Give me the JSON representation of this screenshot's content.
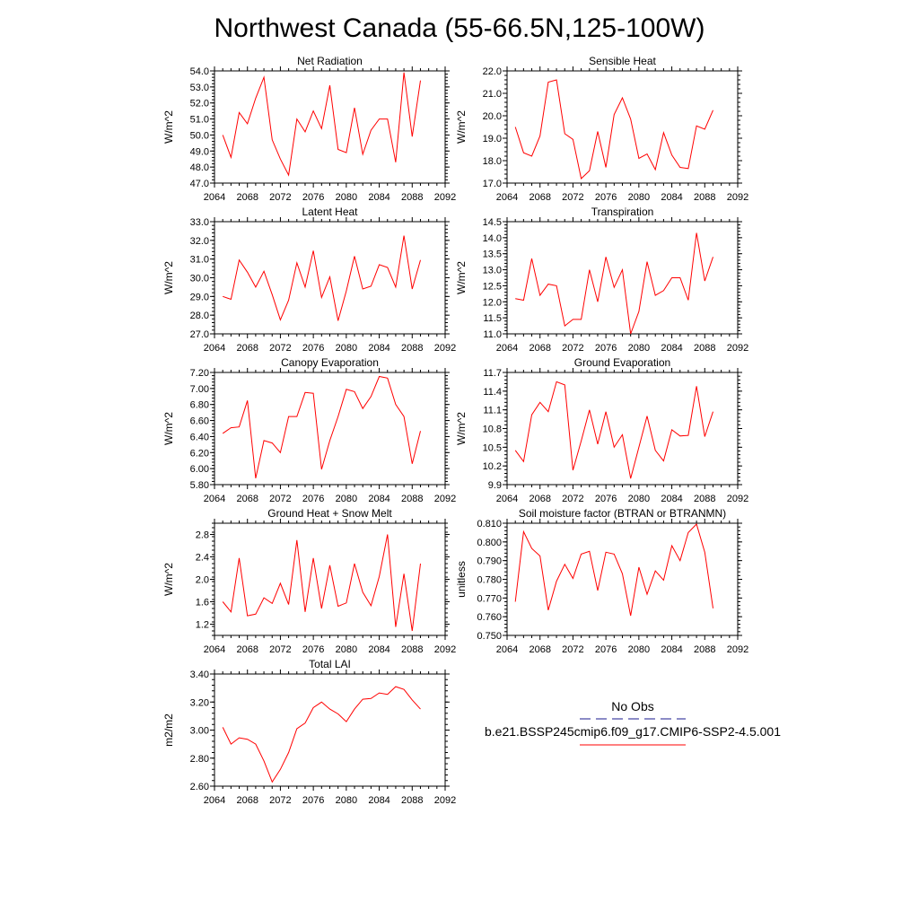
{
  "page_title": "Northwest Canada (55-66.5N,125-100W)",
  "colors": {
    "model_line": "#ff0000",
    "obs_line": "#1a1a8c"
  },
  "legend": {
    "obs_label": "No Obs",
    "model_label": "b.e21.BSSP245cmip6.f09_g17.CMIP6-SSP2-4.5.001"
  },
  "chart_data": [
    {
      "type": "line",
      "title": "Net Radiation",
      "ylabel": "W/m^2",
      "xlabel": "",
      "xlim": [
        2064,
        2092
      ],
      "ylim": [
        47.0,
        54.0
      ],
      "x_ticks": [
        "2064",
        "2068",
        "2072",
        "2076",
        "2080",
        "2084",
        "2088",
        "2092"
      ],
      "y_ticks": [
        "47.0",
        "48.0",
        "49.0",
        "50.0",
        "51.0",
        "52.0",
        "53.0",
        "54.0"
      ],
      "x": [
        2065,
        2066,
        2067,
        2068,
        2069,
        2070,
        2071,
        2072,
        2073,
        2074,
        2075,
        2076,
        2077,
        2078,
        2079,
        2080,
        2081,
        2082,
        2083,
        2084,
        2085,
        2086,
        2087,
        2088,
        2089
      ],
      "series": [
        {
          "values": [
            50.0,
            48.6,
            51.4,
            50.7,
            52.3,
            53.6,
            49.7,
            48.5,
            47.5,
            51.0,
            50.2,
            51.5,
            50.4,
            53.1,
            49.1,
            48.9,
            51.7,
            48.8,
            50.3,
            51.0,
            51.0,
            48.3,
            53.9,
            49.9,
            53.4
          ]
        }
      ]
    },
    {
      "type": "line",
      "title": "Sensible Heat",
      "ylabel": "W/m^2",
      "xlabel": "",
      "xlim": [
        2064,
        2092
      ],
      "ylim": [
        17.0,
        22.0
      ],
      "x_ticks": [
        "2064",
        "2068",
        "2072",
        "2076",
        "2080",
        "2084",
        "2088",
        "2092"
      ],
      "y_ticks": [
        "17.0",
        "18.0",
        "19.0",
        "20.0",
        "21.0",
        "22.0"
      ],
      "x": [
        2065,
        2066,
        2067,
        2068,
        2069,
        2070,
        2071,
        2072,
        2073,
        2074,
        2075,
        2076,
        2077,
        2078,
        2079,
        2080,
        2081,
        2082,
        2083,
        2084,
        2085,
        2086,
        2087,
        2088,
        2089
      ],
      "series": [
        {
          "values": [
            19.5,
            18.35,
            18.2,
            19.1,
            21.5,
            21.6,
            19.2,
            18.95,
            17.2,
            17.55,
            19.3,
            17.7,
            20.05,
            20.8,
            19.85,
            18.1,
            18.3,
            17.6,
            19.25,
            18.25,
            17.7,
            17.65,
            19.55,
            19.4,
            20.25
          ]
        }
      ]
    },
    {
      "type": "line",
      "title": "Latent Heat",
      "ylabel": "W/m^2",
      "xlabel": "",
      "xlim": [
        2064,
        2092
      ],
      "ylim": [
        27.0,
        33.0
      ],
      "x_ticks": [
        "2064",
        "2068",
        "2072",
        "2076",
        "2080",
        "2084",
        "2088",
        "2092"
      ],
      "y_ticks": [
        "27.0",
        "28.0",
        "29.0",
        "30.0",
        "31.0",
        "32.0",
        "33.0"
      ],
      "x": [
        2065,
        2066,
        2067,
        2068,
        2069,
        2070,
        2071,
        2072,
        2073,
        2074,
        2075,
        2076,
        2077,
        2078,
        2079,
        2080,
        2081,
        2082,
        2083,
        2084,
        2085,
        2086,
        2087,
        2088,
        2089
      ],
      "series": [
        {
          "values": [
            29.0,
            28.85,
            30.95,
            30.3,
            29.5,
            30.35,
            29.1,
            27.75,
            28.8,
            30.8,
            29.5,
            31.45,
            28.95,
            30.05,
            27.7,
            29.3,
            31.15,
            29.4,
            29.55,
            30.7,
            30.55,
            29.5,
            32.25,
            29.4,
            30.95
          ]
        }
      ]
    },
    {
      "type": "line",
      "title": "Transpiration",
      "ylabel": "W/m^2",
      "xlabel": "",
      "xlim": [
        2064,
        2092
      ],
      "ylim": [
        11.0,
        14.5
      ],
      "x_ticks": [
        "2064",
        "2068",
        "2072",
        "2076",
        "2080",
        "2084",
        "2088",
        "2092"
      ],
      "y_ticks": [
        "11.0",
        "11.5",
        "12.0",
        "12.5",
        "13.0",
        "13.5",
        "14.0",
        "14.5"
      ],
      "x": [
        2065,
        2066,
        2067,
        2068,
        2069,
        2070,
        2071,
        2072,
        2073,
        2074,
        2075,
        2076,
        2077,
        2078,
        2079,
        2080,
        2081,
        2082,
        2083,
        2084,
        2085,
        2086,
        2087,
        2088,
        2089
      ],
      "series": [
        {
          "values": [
            12.1,
            12.05,
            13.35,
            12.2,
            12.55,
            12.5,
            11.25,
            11.45,
            11.45,
            13.0,
            12.0,
            13.4,
            12.45,
            13.0,
            11.0,
            11.7,
            13.25,
            12.2,
            12.35,
            12.75,
            12.75,
            12.05,
            14.15,
            12.65,
            13.4
          ]
        }
      ]
    },
    {
      "type": "line",
      "title": "Canopy Evaporation",
      "ylabel": "W/m^2",
      "xlabel": "",
      "xlim": [
        2064,
        2092
      ],
      "ylim": [
        5.8,
        7.2
      ],
      "x_ticks": [
        "2064",
        "2068",
        "2072",
        "2076",
        "2080",
        "2084",
        "2088",
        "2092"
      ],
      "y_ticks": [
        "5.80",
        "6.00",
        "6.20",
        "6.40",
        "6.60",
        "6.80",
        "7.00",
        "7.20"
      ],
      "x": [
        2065,
        2066,
        2067,
        2068,
        2069,
        2070,
        2071,
        2072,
        2073,
        2074,
        2075,
        2076,
        2077,
        2078,
        2079,
        2080,
        2081,
        2082,
        2083,
        2084,
        2085,
        2086,
        2087,
        2088,
        2089
      ],
      "series": [
        {
          "values": [
            6.44,
            6.51,
            6.52,
            6.85,
            5.88,
            6.35,
            6.32,
            6.2,
            6.65,
            6.65,
            6.95,
            6.94,
            5.99,
            6.35,
            6.65,
            6.99,
            6.96,
            6.75,
            6.9,
            7.15,
            7.13,
            6.8,
            6.65,
            6.06,
            6.47
          ]
        }
      ]
    },
    {
      "type": "line",
      "title": "Ground Evaporation",
      "ylabel": "W/m^2",
      "xlabel": "",
      "xlim": [
        2064,
        2092
      ],
      "ylim": [
        9.9,
        11.7
      ],
      "x_ticks": [
        "2064",
        "2068",
        "2072",
        "2076",
        "2080",
        "2084",
        "2088",
        "2092"
      ],
      "y_ticks": [
        "9.9",
        "10.2",
        "10.5",
        "10.8",
        "11.1",
        "11.4",
        "11.7"
      ],
      "x": [
        2065,
        2066,
        2067,
        2068,
        2069,
        2070,
        2071,
        2072,
        2073,
        2074,
        2075,
        2076,
        2077,
        2078,
        2079,
        2080,
        2081,
        2082,
        2083,
        2084,
        2085,
        2086,
        2087,
        2088,
        2089
      ],
      "series": [
        {
          "values": [
            10.45,
            10.27,
            11.02,
            11.22,
            11.07,
            11.55,
            11.5,
            10.13,
            10.6,
            11.1,
            10.55,
            11.07,
            10.5,
            10.7,
            10.0,
            10.5,
            11.0,
            10.45,
            10.28,
            10.78,
            10.68,
            10.69,
            11.48,
            10.67,
            11.07
          ]
        }
      ]
    },
    {
      "type": "line",
      "title": "Ground Heat + Snow Melt",
      "ylabel": "W/m^2",
      "xlabel": "",
      "xlim": [
        2064,
        2092
      ],
      "ylim": [
        1.0,
        3.0
      ],
      "x_ticks": [
        "2064",
        "2068",
        "2072",
        "2076",
        "2080",
        "2084",
        "2088",
        "2092"
      ],
      "y_ticks": [
        "1.2",
        "1.6",
        "2.0",
        "2.4",
        "2.8"
      ],
      "y_tick_values": [
        1.2,
        1.6,
        2.0,
        2.4,
        2.8
      ],
      "x": [
        2065,
        2066,
        2067,
        2068,
        2069,
        2070,
        2071,
        2072,
        2073,
        2074,
        2075,
        2076,
        2077,
        2078,
        2079,
        2080,
        2081,
        2082,
        2083,
        2084,
        2085,
        2086,
        2087,
        2088,
        2089
      ],
      "series": [
        {
          "values": [
            1.6,
            1.42,
            2.38,
            1.35,
            1.38,
            1.67,
            1.57,
            1.93,
            1.55,
            2.7,
            1.42,
            2.38,
            1.48,
            2.25,
            1.52,
            1.58,
            2.28,
            1.77,
            1.53,
            2.05,
            2.8,
            1.15,
            2.1,
            1.08,
            2.28
          ]
        }
      ]
    },
    {
      "type": "line",
      "title": "Soil moisture factor (BTRAN or BTRANMN)",
      "ylabel": "unitless",
      "xlabel": "",
      "xlim": [
        2064,
        2092
      ],
      "ylim": [
        0.75,
        0.81
      ],
      "x_ticks": [
        "2064",
        "2068",
        "2072",
        "2076",
        "2080",
        "2084",
        "2088",
        "2092"
      ],
      "y_ticks": [
        "0.750",
        "0.760",
        "0.770",
        "0.780",
        "0.790",
        "0.800",
        "0.810"
      ],
      "x": [
        2065,
        2066,
        2067,
        2068,
        2069,
        2070,
        2071,
        2072,
        2073,
        2074,
        2075,
        2076,
        2077,
        2078,
        2079,
        2080,
        2081,
        2082,
        2083,
        2084,
        2085,
        2086,
        2087,
        2088,
        2089
      ],
      "series": [
        {
          "values": [
            0.768,
            0.8055,
            0.7965,
            0.7925,
            0.7635,
            0.779,
            0.788,
            0.7805,
            0.7935,
            0.795,
            0.774,
            0.7945,
            0.7935,
            0.783,
            0.7605,
            0.7865,
            0.772,
            0.7845,
            0.7795,
            0.798,
            0.79,
            0.805,
            0.8095,
            0.7945,
            0.7645
          ]
        }
      ]
    },
    {
      "type": "line",
      "title": "Total LAI",
      "ylabel": "m2/m2",
      "xlabel": "",
      "xlim": [
        2064,
        2092
      ],
      "ylim": [
        2.6,
        3.4
      ],
      "x_ticks": [
        "2064",
        "2068",
        "2072",
        "2076",
        "2080",
        "2084",
        "2088",
        "2092"
      ],
      "y_ticks": [
        "2.60",
        "2.80",
        "3.00",
        "3.20",
        "3.40"
      ],
      "x": [
        2065,
        2066,
        2067,
        2068,
        2069,
        2070,
        2071,
        2072,
        2073,
        2074,
        2075,
        2076,
        2077,
        2078,
        2079,
        2080,
        2081,
        2082,
        2083,
        2084,
        2085,
        2086,
        2087,
        2088,
        2089
      ],
      "series": [
        {
          "values": [
            3.02,
            2.9,
            2.945,
            2.935,
            2.9,
            2.78,
            2.63,
            2.72,
            2.84,
            3.01,
            3.05,
            3.16,
            3.2,
            3.15,
            3.115,
            3.06,
            3.15,
            3.22,
            3.225,
            3.265,
            3.255,
            3.31,
            3.29,
            3.215,
            3.15
          ]
        }
      ]
    }
  ]
}
